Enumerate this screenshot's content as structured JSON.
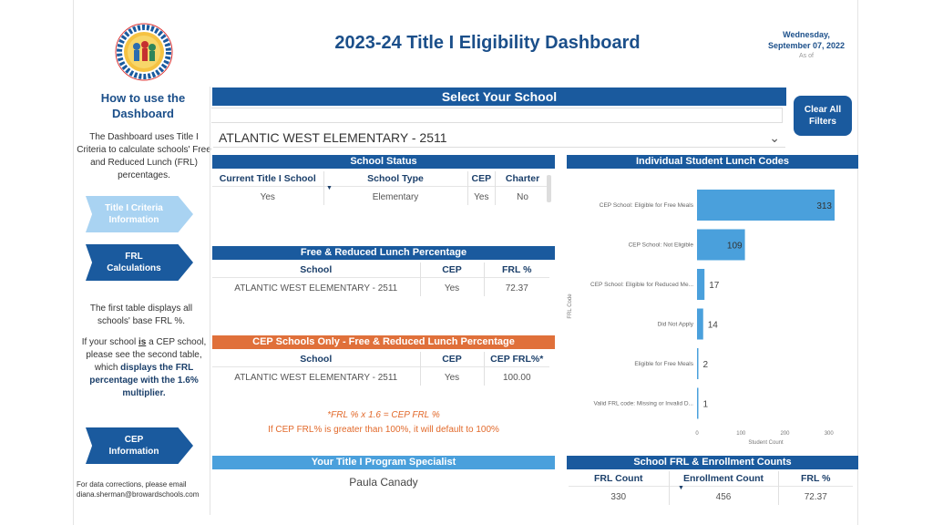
{
  "header": {
    "title": "2023-24 Title I Eligibility Dashboard",
    "date_line1": "Wednesday,",
    "date_line2": "September 07, 2022",
    "as_of": "As of"
  },
  "logo": {
    "text": "SPECIAL PROGRAMS · TITLE I · MIGRANT EDUCATION"
  },
  "sidebar": {
    "heading": "How to use the Dashboard",
    "intro": "The Dashboard uses Title I Criteria to calculate schools' Free and Reduced Lunch (FRL) percentages.",
    "btn_criteria": "Title I Criteria Information",
    "btn_frl": "FRL Calculations",
    "first_table": "The first table displays all schools' base FRL %.",
    "cep_note_1": "If your school ",
    "cep_note_is": "is",
    "cep_note_2": " a CEP school, please see the second table, which ",
    "cep_note_bold": "displays the FRL percentage with the 1.6% multiplier.",
    "btn_cep": "CEP Information",
    "footer_1": "For data corrections, please email",
    "footer_2": "diana.sherman@browardschools.com"
  },
  "selector": {
    "bar_title": "Select Your School",
    "selected": "ATLANTIC WEST ELEMENTARY - 2511",
    "clear_label": "Clear All Filters"
  },
  "school_status": {
    "title": "School Status",
    "headers": [
      "Current Title I School",
      "School Type",
      "CEP",
      "Charter"
    ],
    "row": [
      "Yes",
      "Elementary",
      "Yes",
      "No"
    ]
  },
  "frl_table": {
    "title": "Free & Reduced Lunch Percentage",
    "headers": [
      "School",
      "CEP",
      "FRL %"
    ],
    "row": [
      "ATLANTIC WEST ELEMENTARY - 2511",
      "Yes",
      "72.37"
    ]
  },
  "cep_table": {
    "title": "CEP Schools Only - Free & Reduced Lunch Percentage",
    "headers": [
      "School",
      "CEP",
      "CEP FRL%*"
    ],
    "row": [
      "ATLANTIC WEST ELEMENTARY - 2511",
      "Yes",
      "100.00"
    ]
  },
  "formula": {
    "line1": "*FRL % x 1.6 = CEP FRL %",
    "line2": "If CEP FRL% is greater than 100%, it will default to 100%"
  },
  "specialist": {
    "title": "Your Title I Program Specialist",
    "name": "Paula Canady"
  },
  "lunch_codes": {
    "title": "Individual Student Lunch Codes"
  },
  "chart_data": {
    "type": "bar",
    "orientation": "horizontal",
    "categories": [
      "CEP School: Eligible for Free Meals",
      "CEP School: Not Eligible",
      "CEP School: Eligible for Reduced Me...",
      "Did Not Apply",
      "Eligible for Free Meals",
      "Valid FRL code: Missing or Invalid D..."
    ],
    "values": [
      313,
      109,
      17,
      14,
      2,
      1
    ],
    "xlabel": "Student Count",
    "ylabel": "FRL Code",
    "xticks": [
      0,
      100,
      200,
      300
    ],
    "xlim": [
      0,
      313
    ],
    "bar_colors": [
      "#4aa0dc",
      "#4aa0dc",
      "#4aa0dc",
      "#4aa0dc",
      "#4aa0dc",
      "#4aa0dc"
    ]
  },
  "enrollment": {
    "title": "School FRL & Enrollment Counts",
    "headers": [
      "FRL Count",
      "Enrollment Count",
      "FRL %"
    ],
    "row": [
      "330",
      "456",
      "72.37"
    ]
  },
  "colors": {
    "primary": "#1a5a9e",
    "light_arrow": "#a9d3f2",
    "accent_orange": "#e0703a",
    "bar": "#4aa0dc"
  }
}
